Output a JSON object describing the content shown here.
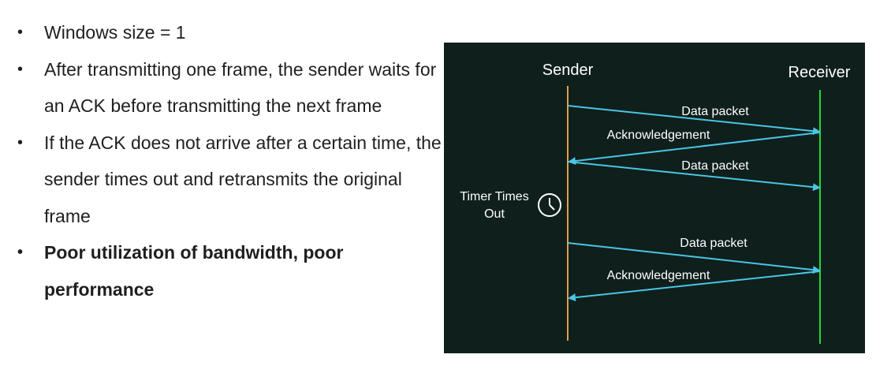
{
  "bullets": [
    {
      "text": "Windows size = 1",
      "bold": false
    },
    {
      "text": "After transmitting one frame, the sender waits for an ACK before transmitting the next frame",
      "bold": false
    },
    {
      "text": "If the ACK does not arrive after a certain time, the sender times out and retransmits the original frame",
      "bold": false
    },
    {
      "text": "Poor utilization of bandwidth, poor performance",
      "bold": true
    }
  ],
  "bullet_char": "•",
  "diagram": {
    "sender_label": "Sender",
    "receiver_label": "Receiver",
    "messages": [
      {
        "label": "Data packet",
        "direction": "to-receiver"
      },
      {
        "label": "Acknowledgement",
        "direction": "to-sender"
      },
      {
        "label": "Data packet",
        "direction": "to-receiver"
      },
      {
        "label": "Data packet",
        "direction": "to-receiver"
      },
      {
        "label": "Acknowledgement",
        "direction": "to-sender"
      }
    ],
    "timer_label_line1": "Timer Times",
    "timer_label_line2": "Out",
    "colors": {
      "background": "#0f1f1c",
      "sender_line": "#e0a050",
      "receiver_line": "#22d83a",
      "arrow": "#4cc4e6",
      "text": "#ffffff"
    }
  }
}
